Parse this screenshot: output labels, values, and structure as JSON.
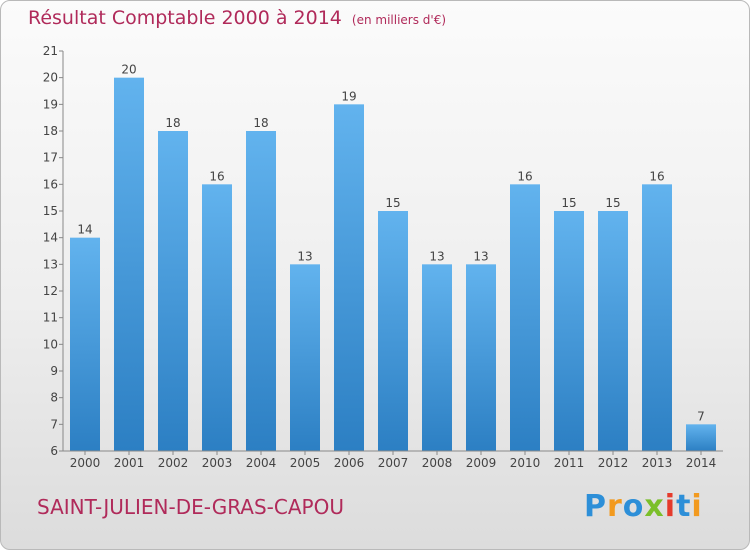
{
  "title": "Résultat Comptable 2000 à 2014",
  "unit_note": "(en milliers d'€)",
  "commune": "SAINT-JULIEN-DE-GRAS-CAPOU",
  "logo": {
    "letters": [
      "P",
      "r",
      "o",
      "x",
      "i",
      "t",
      "i"
    ],
    "colors": [
      "#2d8fd8",
      "#f29a1f",
      "#2d8fd8",
      "#7bbf2a",
      "#e53b2c",
      "#2d8fd8",
      "#f29a1f"
    ]
  },
  "colors": {
    "title": "#b02a5a",
    "bar_top": "#62b3ee",
    "bar_bottom": "#2c7fc3"
  },
  "chart_data": {
    "type": "bar",
    "title": "Résultat Comptable 2000 à 2014",
    "xlabel": "",
    "ylabel": "",
    "categories": [
      "2000",
      "2001",
      "2002",
      "2003",
      "2004",
      "2005",
      "2006",
      "2007",
      "2008",
      "2009",
      "2010",
      "2011",
      "2012",
      "2013",
      "2014"
    ],
    "values": [
      14,
      20,
      18,
      16,
      18,
      13,
      19,
      15,
      13,
      13,
      16,
      15,
      15,
      16,
      7
    ],
    "ylim": [
      6,
      21
    ],
    "yticks": [
      6,
      7,
      8,
      9,
      10,
      11,
      12,
      13,
      14,
      15,
      16,
      17,
      18,
      19,
      20,
      21
    ],
    "grid": false,
    "data_labels": true
  }
}
